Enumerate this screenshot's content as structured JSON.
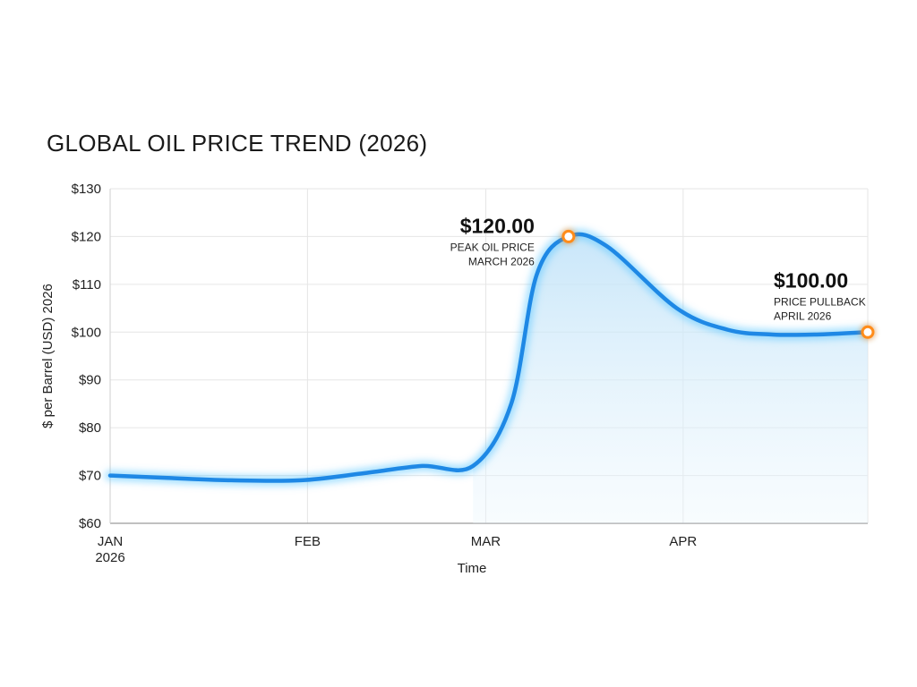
{
  "chart_data": {
    "type": "line",
    "title": "GLOBAL OIL PRICE TREND (2026)",
    "xlabel": "Time",
    "ylabel": "$ per Barrel (USD) 2026",
    "ylim": [
      60,
      130
    ],
    "yticks": [
      {
        "value": 60,
        "label": "$60"
      },
      {
        "value": 70,
        "label": "$70"
      },
      {
        "value": 80,
        "label": "$80"
      },
      {
        "value": 90,
        "label": "$90"
      },
      {
        "value": 100,
        "label": "$100"
      },
      {
        "value": 110,
        "label": "$110"
      },
      {
        "value": 120,
        "label": "$120"
      },
      {
        "value": 130,
        "label": "$130"
      }
    ],
    "xlim": [
      "2026-01-01",
      "2026-04-30"
    ],
    "xticks": [
      {
        "value": "2026-01-01",
        "label": "JAN",
        "sublabel": "2026"
      },
      {
        "value": "2026-02-01",
        "label": "FEB",
        "sublabel": ""
      },
      {
        "value": "2026-03-01",
        "label": "MAR",
        "sublabel": ""
      },
      {
        "value": "2026-04-01",
        "label": "APR",
        "sublabel": ""
      }
    ],
    "grid": true,
    "series": [
      {
        "color": "#1e88e5",
        "points": [
          {
            "x": "2026-01-01",
            "y": 70
          },
          {
            "x": "2026-01-10",
            "y": 69.5
          },
          {
            "x": "2026-01-20",
            "y": 69
          },
          {
            "x": "2026-01-31",
            "y": 69
          },
          {
            "x": "2026-02-10",
            "y": 70.5
          },
          {
            "x": "2026-02-19",
            "y": 72
          },
          {
            "x": "2026-02-27",
            "y": 72
          },
          {
            "x": "2026-03-05",
            "y": 85
          },
          {
            "x": "2026-03-09",
            "y": 112
          },
          {
            "x": "2026-03-14",
            "y": 120
          },
          {
            "x": "2026-03-20",
            "y": 118
          },
          {
            "x": "2026-03-31",
            "y": 105
          },
          {
            "x": "2026-04-08",
            "y": 100.5
          },
          {
            "x": "2026-04-15",
            "y": 99.5
          },
          {
            "x": "2026-04-22",
            "y": 99.5
          },
          {
            "x": "2026-04-30",
            "y": 100
          }
        ]
      }
    ],
    "annotations": [
      {
        "x": "2026-03-14",
        "y": 120,
        "value_label": "$120.00",
        "line1": "PEAK OIL PRICE",
        "line2": "MARCH 2026",
        "align": "left-of-point"
      },
      {
        "x": "2026-04-30",
        "y": 100,
        "value_label": "$100.00",
        "line1": "PRICE PULLBACK",
        "line2": "APRIL 2026",
        "align": "above-left"
      }
    ],
    "colors": {
      "line": "#1e88e5",
      "glow": "#5ec8ff",
      "fill": "#d6ecfb",
      "marker": "#ff8c1a",
      "grid": "#e6e6e6"
    }
  }
}
